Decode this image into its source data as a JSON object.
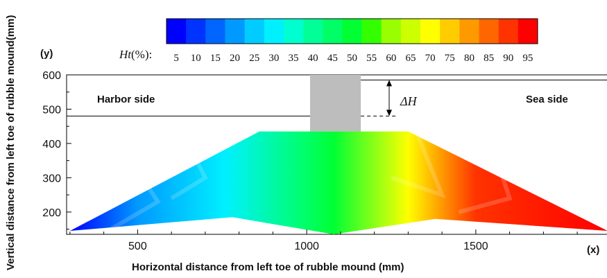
{
  "chart_data": {
    "type": "heatmap",
    "colorbar": {
      "label_prefix": "Ht",
      "label_unit": "(%):",
      "ticks": [
        "5",
        "10",
        "15",
        "20",
        "25",
        "30",
        "35",
        "40",
        "45",
        "50",
        "55",
        "60",
        "65",
        "70",
        "75",
        "80",
        "85",
        "90",
        "95"
      ],
      "colors": [
        "#0000ff",
        "#0033ff",
        "#0066ff",
        "#0099ff",
        "#00ccff",
        "#00f0ff",
        "#00ffd0",
        "#00ff99",
        "#00ff66",
        "#00ff33",
        "#33ff00",
        "#99ff00",
        "#ccff00",
        "#ffff00",
        "#ffcc00",
        "#ff9900",
        "#ff6600",
        "#ff3300",
        "#ff0000"
      ]
    },
    "xlabel": "Horizontal distance from left toe of rubble mound   (mm)",
    "ylabel": "Vertical distance from left toe of rubble mound(mm)",
    "x_axis_tag": "(x)",
    "y_axis_tag": "(y)",
    "xticks": [
      500,
      1000,
      1500
    ],
    "yticks": [
      200,
      300,
      400,
      500,
      600
    ],
    "xlim": [
      290,
      1890
    ],
    "ylim": [
      135,
      600
    ],
    "annotations": {
      "harbor_side": "Harbor side",
      "sea_side": "Sea side",
      "delta_h": "ΔH"
    },
    "water_levels": {
      "harbor": 480,
      "sea": 585
    },
    "caisson": {
      "x": [
        1010,
        1160
      ],
      "y": [
        435,
        600
      ]
    },
    "mound": {
      "outline": [
        [
          300,
          145
        ],
        [
          860,
          435
        ],
        [
          1300,
          435
        ],
        [
          1890,
          145
        ],
        [
          1380,
          180
        ],
        [
          1080,
          135
        ],
        [
          780,
          185
        ]
      ],
      "gradient_stops": [
        {
          "x": 300,
          "percent": 5
        },
        {
          "x": 500,
          "percent": 22
        },
        {
          "x": 760,
          "percent": 30
        },
        {
          "x": 1000,
          "percent": 45
        },
        {
          "x": 1080,
          "percent": 52
        },
        {
          "x": 1300,
          "percent": 72
        },
        {
          "x": 1500,
          "percent": 88
        },
        {
          "x": 1890,
          "percent": 95
        }
      ]
    }
  }
}
